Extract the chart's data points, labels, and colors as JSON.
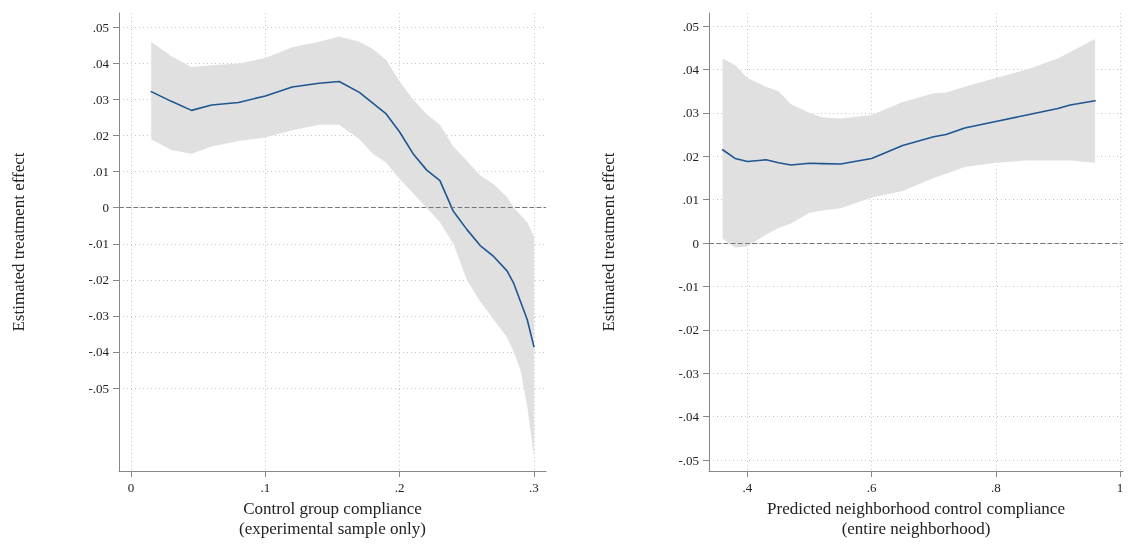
{
  "chart_data": [
    {
      "type": "line",
      "xlabel": "Control group compliance\n(experimental sample only)",
      "ylabel": "Estimated treatment effect",
      "x": [
        0.015,
        0.03,
        0.045,
        0.06,
        0.08,
        0.1,
        0.12,
        0.14,
        0.155,
        0.17,
        0.18,
        0.19,
        0.2,
        0.21,
        0.22,
        0.23,
        0.24,
        0.25,
        0.26,
        0.27,
        0.28,
        0.285,
        0.29,
        0.295,
        0.3
      ],
      "series": [
        {
          "color": "#1f5591",
          "values": [
            0.0322,
            0.0295,
            0.027,
            0.0285,
            0.0292,
            0.031,
            0.0335,
            0.0345,
            0.035,
            0.032,
            0.029,
            0.026,
            0.021,
            0.015,
            0.0105,
            0.0075,
            -0.001,
            -0.006,
            -0.0105,
            -0.0135,
            -0.0175,
            -0.021,
            -0.026,
            -0.031,
            -0.0385
          ],
          "upper": [
            0.046,
            0.042,
            0.039,
            0.0395,
            0.04,
            0.0415,
            0.0445,
            0.046,
            0.0475,
            0.046,
            0.044,
            0.041,
            0.035,
            0.03,
            0.026,
            0.023,
            0.017,
            0.013,
            0.009,
            0.0065,
            0.003,
            0.0,
            -0.002,
            -0.004,
            -0.008
          ],
          "lower": [
            0.019,
            0.016,
            0.015,
            0.017,
            0.0185,
            0.0195,
            0.0215,
            0.023,
            0.023,
            0.019,
            0.015,
            0.0125,
            0.008,
            0.004,
            0.0,
            -0.004,
            -0.01,
            -0.02,
            -0.026,
            -0.031,
            -0.036,
            -0.04,
            -0.045,
            -0.055,
            -0.069
          ]
        }
      ],
      "xlim": [
        -0.009,
        0.309
      ],
      "xticks": [
        0,
        {
          "value": 0.1,
          "label": ".1"
        },
        {
          "value": 0.2,
          "label": ".2"
        },
        {
          "value": 0.3,
          "label": ".3"
        }
      ],
      "ylim": [
        -0.073,
        0.054
      ],
      "yticks": [
        {
          "value": 0.05,
          "label": ".05"
        },
        {
          "value": 0.04,
          "label": ".04"
        },
        {
          "value": 0.03,
          "label": ".03"
        },
        {
          "value": 0.02,
          "label": ".02"
        },
        {
          "value": 0.01,
          "label": ".01"
        },
        0,
        {
          "value": -0.01,
          "label": "-.01"
        },
        {
          "value": -0.02,
          "label": "-.02"
        },
        {
          "value": -0.03,
          "label": "-.03"
        },
        {
          "value": -0.04,
          "label": "-.04"
        },
        {
          "value": -0.05,
          "label": "-.05"
        }
      ],
      "ref_lines": [
        {
          "axis": "y",
          "value": 0,
          "color": "#777777",
          "line_style": "dashed"
        }
      ],
      "grid": true,
      "marker": "none",
      "line_style": "solid"
    },
    {
      "type": "line",
      "xlabel": "Predicted neighborhood control compliance\n(entire neighborhood)",
      "ylabel": "Estimated treatment effect",
      "x": [
        0.36,
        0.38,
        0.4,
        0.43,
        0.45,
        0.47,
        0.5,
        0.52,
        0.55,
        0.6,
        0.65,
        0.7,
        0.72,
        0.75,
        0.8,
        0.85,
        0.9,
        0.92,
        0.96
      ],
      "series": [
        {
          "color": "#1f5591",
          "values": [
            0.0215,
            0.0195,
            0.0188,
            0.0192,
            0.0185,
            0.018,
            0.0184,
            0.0183,
            0.0182,
            0.0195,
            0.0225,
            0.0245,
            0.025,
            0.0265,
            0.028,
            0.0295,
            0.031,
            0.0318,
            0.0328
          ],
          "upper": [
            0.0425,
            0.041,
            0.038,
            0.036,
            0.035,
            0.032,
            0.03,
            0.029,
            0.0287,
            0.0295,
            0.0325,
            0.0345,
            0.0347,
            0.036,
            0.038,
            0.04,
            0.0425,
            0.044,
            0.047
          ],
          "lower": [
            0.001,
            -0.001,
            -0.0008,
            0.002,
            0.0035,
            0.0045,
            0.007,
            0.0075,
            0.008,
            0.0105,
            0.012,
            0.015,
            0.016,
            0.0175,
            0.0185,
            0.019,
            0.019,
            0.019,
            0.0185
          ]
        }
      ],
      "xlim": [
        0.338,
        1.005
      ],
      "xticks": [
        {
          "value": 0.4,
          "label": ".4"
        },
        {
          "value": 0.6,
          "label": ".6"
        },
        {
          "value": 0.8,
          "label": ".8"
        },
        1
      ],
      "ylim": [
        -0.0525,
        0.053
      ],
      "yticks": [
        {
          "value": 0.05,
          "label": ".05"
        },
        {
          "value": 0.04,
          "label": ".04"
        },
        {
          "value": 0.03,
          "label": ".03"
        },
        {
          "value": 0.02,
          "label": ".02"
        },
        {
          "value": 0.01,
          "label": ".01"
        },
        0,
        {
          "value": -0.01,
          "label": "-.01"
        },
        {
          "value": -0.02,
          "label": "-.02"
        },
        {
          "value": -0.03,
          "label": "-.03"
        },
        {
          "value": -0.04,
          "label": "-.04"
        },
        {
          "value": -0.05,
          "label": "-.05"
        }
      ],
      "ref_lines": [
        {
          "axis": "y",
          "value": 0,
          "color": "#777777",
          "line_style": "dashed"
        }
      ],
      "grid": true,
      "marker": "none",
      "line_style": "solid"
    }
  ]
}
